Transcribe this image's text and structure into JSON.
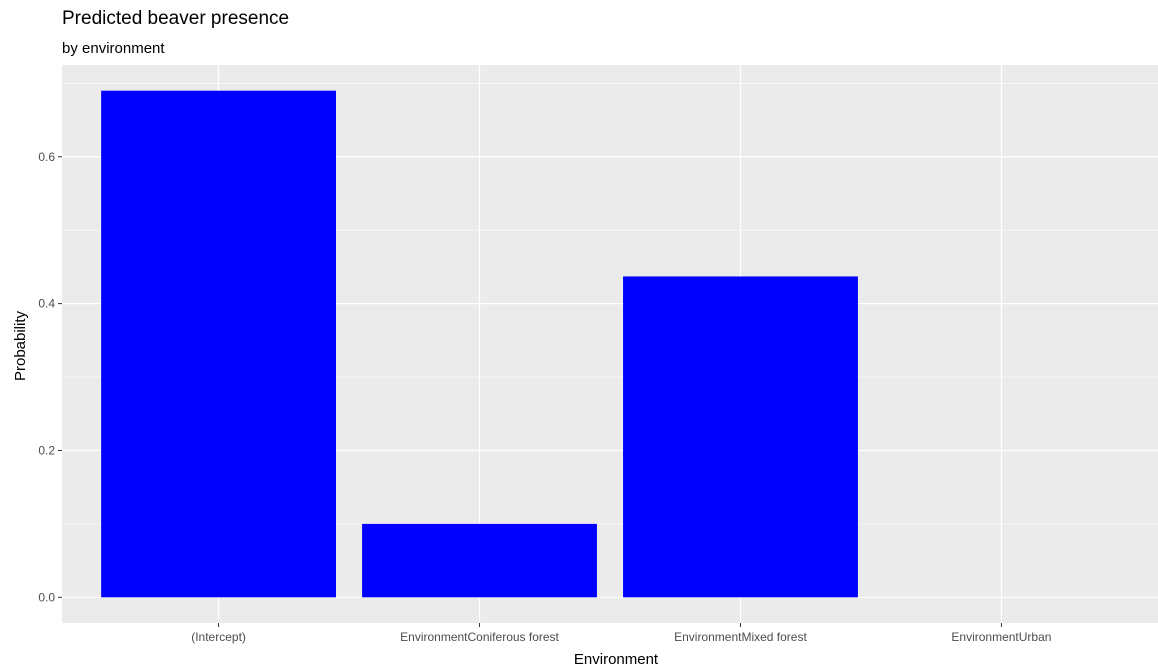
{
  "chart_data": {
    "type": "bar",
    "title": "Predicted beaver presence",
    "subtitle": "by environment",
    "xlabel": "Environment",
    "ylabel": "Probability",
    "categories": [
      "(Intercept)",
      "EnvironmentConiferous forest",
      "EnvironmentMixed forest",
      "EnvironmentUrban"
    ],
    "values": [
      0.69,
      0.1,
      0.437,
      0.0
    ],
    "ylim": [
      -0.035,
      0.725
    ],
    "yticks": [
      0.0,
      0.2,
      0.4,
      0.6
    ],
    "ytick_labels": [
      "0.0",
      "0.2",
      "0.4",
      "0.6"
    ],
    "grid": true,
    "legend": "none",
    "colors": {
      "bar": "#0000ff",
      "panel_background": "#ebebeb",
      "grid_major": "#ffffff",
      "tick_text": "#4d4d4d"
    }
  }
}
